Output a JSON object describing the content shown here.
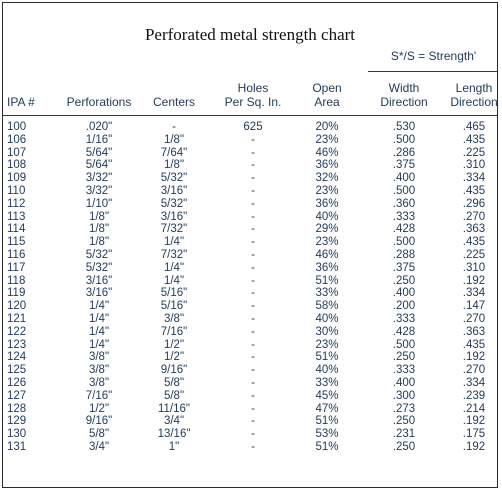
{
  "title": "Perforated metal strength chart",
  "subheader": "S*/S = Strength'",
  "headers": {
    "ipa": "IPA #",
    "perforations": "Perforations",
    "centers": "Centers",
    "holes_1": "Holes",
    "holes_2": "Per Sq. In.",
    "open_1": "Open",
    "open_2": "Area",
    "width_1": "Width",
    "width_2": "Direction",
    "length_1": "Length",
    "length_2": "Direction"
  },
  "rows": [
    [
      "100",
      ".020\"",
      "-",
      "625",
      "20%",
      ".530",
      ".465"
    ],
    [
      "106",
      "1/16\"",
      "1/8\"",
      "-",
      "23%",
      ".500",
      ".435"
    ],
    [
      "107",
      "5/64\"",
      "7/64\"",
      "-",
      "46%",
      ".286",
      ".225"
    ],
    [
      "108",
      "5/64\"",
      "1/8\"",
      "-",
      "36%",
      ".375",
      ".310"
    ],
    [
      "109",
      "3/32\"",
      "5/32\"",
      "-",
      "32%",
      ".400",
      ".334"
    ],
    [
      "110",
      "3/32\"",
      "3/16\"",
      "-",
      "23%",
      ".500",
      ".435"
    ],
    [
      "112",
      "1/10\"",
      "5/32\"",
      "-",
      "36%",
      ".360",
      ".296"
    ],
    [
      "113",
      "1/8\"",
      "3/16\"",
      "-",
      "40%",
      ".333",
      ".270"
    ],
    [
      "114",
      "1/8\"",
      "7/32\"",
      "-",
      "29%",
      ".428",
      ".363"
    ],
    [
      "115",
      "1/8\"",
      "1/4\"",
      "-",
      "23%",
      ".500",
      ".435"
    ],
    [
      "116",
      "5/32\"",
      "7/32\"",
      "-",
      "46%",
      ".288",
      ".225"
    ],
    [
      "117",
      "5/32\"",
      "1/4\"",
      "-",
      "36%",
      ".375",
      ".310"
    ],
    [
      "118",
      "3/16\"",
      "1/4\"",
      "-",
      "51%",
      ".250",
      ".192"
    ],
    [
      "119",
      "3/16\"",
      "5/16\"",
      "-",
      "33%",
      ".400",
      ".334"
    ],
    [
      "120",
      "1/4\"",
      "5/16\"",
      "-",
      "58%",
      ".200",
      ".147"
    ],
    [
      "121",
      "1/4\"",
      "3/8\"",
      "-",
      "40%",
      ".333",
      ".270"
    ],
    [
      "122",
      "1/4\"",
      "7/16\"",
      "-",
      "30%",
      ".428",
      ".363"
    ],
    [
      "123",
      "1/4\"",
      "1/2\"",
      "-",
      "23%",
      ".500",
      ".435"
    ],
    [
      "124",
      "3/8\"",
      "1/2\"",
      "-",
      "51%",
      ".250",
      ".192"
    ],
    [
      "125",
      "3/8\"",
      "9/16\"",
      "-",
      "40%",
      ".333",
      ".270"
    ],
    [
      "126",
      "3/8\"",
      "5/8\"",
      "-",
      "33%",
      ".400",
      ".334"
    ],
    [
      "127",
      "7/16\"",
      "5/8\"",
      "-",
      "45%",
      ".300",
      ".239"
    ],
    [
      "128",
      "1/2\"",
      "11/16\"",
      "-",
      "47%",
      ".273",
      ".214"
    ],
    [
      "129",
      "9/16\"",
      "3/4\"",
      "-",
      "51%",
      ".250",
      ".192"
    ],
    [
      "130",
      "5/8\"",
      "13/16\"",
      "-",
      "53%",
      ".231",
      ".175"
    ],
    [
      "131",
      "3/4\"",
      "1\"",
      "-",
      "51%",
      ".250",
      ".192"
    ]
  ]
}
